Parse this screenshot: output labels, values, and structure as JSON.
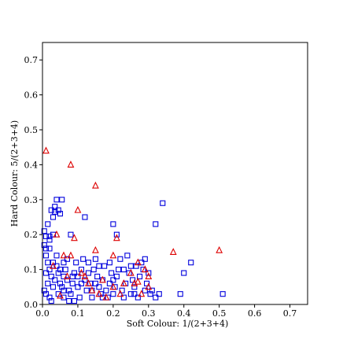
{
  "chart_data": {
    "type": "scatter",
    "title": "",
    "xlabel": "Soft Colour: 1/(2+3+4)",
    "ylabel": "Hard Colour: 5/(2+3+4)",
    "xlim": [
      0.0,
      0.75
    ],
    "ylim": [
      0.0,
      0.75
    ],
    "xticks": [
      0.0,
      0.1,
      0.2,
      0.3,
      0.4,
      0.5,
      0.6,
      0.7
    ],
    "yticks": [
      0.0,
      0.1,
      0.2,
      0.3,
      0.4,
      0.5,
      0.6,
      0.7
    ],
    "xtick_labels": [
      "0.0",
      "0.1",
      "0.2",
      "0.3",
      "0.4",
      "0.5",
      "0.6",
      "0.7"
    ],
    "ytick_labels": [
      "0.0",
      "0.1",
      "0.2",
      "0.3",
      "0.4",
      "0.5",
      "0.6",
      "0.7"
    ],
    "grid": false,
    "series": [
      {
        "marker": "square",
        "color": "#0000dd",
        "points": [
          [
            0.005,
            0.21
          ],
          [
            0.01,
            0.195
          ],
          [
            0.02,
            0.195
          ],
          [
            0.005,
            0.17
          ],
          [
            0.01,
            0.16
          ],
          [
            0.02,
            0.185
          ],
          [
            0.02,
            0.16
          ],
          [
            0.01,
            0.14
          ],
          [
            0.03,
            0.2
          ],
          [
            0.015,
            0.23
          ],
          [
            0.025,
            0.27
          ],
          [
            0.035,
            0.28
          ],
          [
            0.04,
            0.3
          ],
          [
            0.03,
            0.25
          ],
          [
            0.035,
            0.265
          ],
          [
            0.055,
            0.3
          ],
          [
            0.045,
            0.27
          ],
          [
            0.05,
            0.26
          ],
          [
            0.08,
            0.2
          ],
          [
            0.07,
            0.13
          ],
          [
            0.015,
            0.12
          ],
          [
            0.02,
            0.1
          ],
          [
            0.01,
            0.09
          ],
          [
            0.025,
            0.08
          ],
          [
            0.015,
            0.06
          ],
          [
            0.005,
            0.04
          ],
          [
            0.01,
            0.03
          ],
          [
            0.02,
            0.02
          ],
          [
            0.025,
            0.01
          ],
          [
            0.03,
            0.05
          ],
          [
            0.035,
            0.07
          ],
          [
            0.04,
            0.11
          ],
          [
            0.045,
            0.09
          ],
          [
            0.05,
            0.06
          ],
          [
            0.055,
            0.05
          ],
          [
            0.06,
            0.08
          ],
          [
            0.065,
            0.1
          ],
          [
            0.07,
            0.07
          ],
          [
            0.075,
            0.04
          ],
          [
            0.08,
            0.03
          ],
          [
            0.085,
            0.06
          ],
          [
            0.09,
            0.09
          ],
          [
            0.095,
            0.12
          ],
          [
            0.1,
            0.08
          ],
          [
            0.1,
            0.05
          ],
          [
            0.105,
            0.02
          ],
          [
            0.11,
            0.1
          ],
          [
            0.115,
            0.13
          ],
          [
            0.12,
            0.07
          ],
          [
            0.125,
            0.04
          ],
          [
            0.13,
            0.09
          ],
          [
            0.135,
            0.06
          ],
          [
            0.14,
            0.02
          ],
          [
            0.145,
            0.1
          ],
          [
            0.15,
            0.13
          ],
          [
            0.155,
            0.08
          ],
          [
            0.16,
            0.05
          ],
          [
            0.165,
            0.03
          ],
          [
            0.17,
            0.07
          ],
          [
            0.175,
            0.11
          ],
          [
            0.18,
            0.04
          ],
          [
            0.185,
            0.02
          ],
          [
            0.19,
            0.06
          ],
          [
            0.195,
            0.09
          ],
          [
            0.2,
            0.03
          ],
          [
            0.205,
            0.05
          ],
          [
            0.21,
            0.08
          ],
          [
            0.215,
            0.1
          ],
          [
            0.22,
            0.13
          ],
          [
            0.225,
            0.04
          ],
          [
            0.23,
            0.02
          ],
          [
            0.235,
            0.06
          ],
          [
            0.24,
            0.14
          ],
          [
            0.245,
            0.09
          ],
          [
            0.25,
            0.03
          ],
          [
            0.255,
            0.07
          ],
          [
            0.26,
            0.05
          ],
          [
            0.265,
            0.11
          ],
          [
            0.27,
            0.02
          ],
          [
            0.275,
            0.08
          ],
          [
            0.28,
            0.12
          ],
          [
            0.285,
            0.1
          ],
          [
            0.29,
            0.13
          ],
          [
            0.295,
            0.06
          ],
          [
            0.3,
            0.09
          ],
          [
            0.305,
            0.03
          ],
          [
            0.31,
            0.04
          ],
          [
            0.32,
            0.02
          ],
          [
            0.33,
            0.03
          ],
          [
            0.12,
            0.25
          ],
          [
            0.2,
            0.23
          ],
          [
            0.21,
            0.2
          ],
          [
            0.32,
            0.23
          ],
          [
            0.34,
            0.29
          ],
          [
            0.42,
            0.12
          ],
          [
            0.4,
            0.09
          ],
          [
            0.39,
            0.03
          ],
          [
            0.51,
            0.03
          ],
          [
            0.085,
            0.08
          ],
          [
            0.06,
            0.12
          ],
          [
            0.045,
            0.03
          ],
          [
            0.06,
            0.02
          ],
          [
            0.09,
            0.01
          ],
          [
            0.075,
            0.01
          ],
          [
            0.14,
            0.04
          ],
          [
            0.16,
            0.11
          ],
          [
            0.17,
            0.02
          ],
          [
            0.19,
            0.12
          ],
          [
            0.23,
            0.1
          ],
          [
            0.26,
            0.03
          ],
          [
            0.03,
            0.12
          ],
          [
            0.04,
            0.14
          ],
          [
            0.05,
            0.1
          ],
          [
            0.06,
            0.04
          ],
          [
            0.11,
            0.06
          ],
          [
            0.13,
            0.12
          ],
          [
            0.15,
            0.06
          ],
          [
            0.2,
            0.07
          ],
          [
            0.25,
            0.11
          ],
          [
            0.29,
            0.04
          ]
        ]
      },
      {
        "marker": "triangle",
        "color": "#dd0000",
        "points": [
          [
            0.01,
            0.44
          ],
          [
            0.08,
            0.4
          ],
          [
            0.15,
            0.34
          ],
          [
            0.1,
            0.27
          ],
          [
            0.04,
            0.2
          ],
          [
            0.09,
            0.19
          ],
          [
            0.21,
            0.19
          ],
          [
            0.37,
            0.15
          ],
          [
            0.5,
            0.155
          ],
          [
            0.15,
            0.155
          ],
          [
            0.08,
            0.14
          ],
          [
            0.06,
            0.14
          ],
          [
            0.2,
            0.14
          ],
          [
            0.27,
            0.12
          ],
          [
            0.03,
            0.11
          ],
          [
            0.11,
            0.09
          ],
          [
            0.29,
            0.1
          ],
          [
            0.12,
            0.08
          ],
          [
            0.3,
            0.08
          ],
          [
            0.25,
            0.09
          ],
          [
            0.17,
            0.07
          ],
          [
            0.27,
            0.065
          ],
          [
            0.23,
            0.06
          ],
          [
            0.3,
            0.05
          ],
          [
            0.2,
            0.05
          ],
          [
            0.14,
            0.04
          ],
          [
            0.28,
            0.03
          ],
          [
            0.05,
            0.025
          ],
          [
            0.18,
            0.02
          ],
          [
            0.22,
            0.03
          ],
          [
            0.26,
            0.06
          ],
          [
            0.13,
            0.06
          ],
          [
            0.07,
            0.08
          ],
          [
            0.16,
            0.03
          ]
        ]
      }
    ]
  }
}
